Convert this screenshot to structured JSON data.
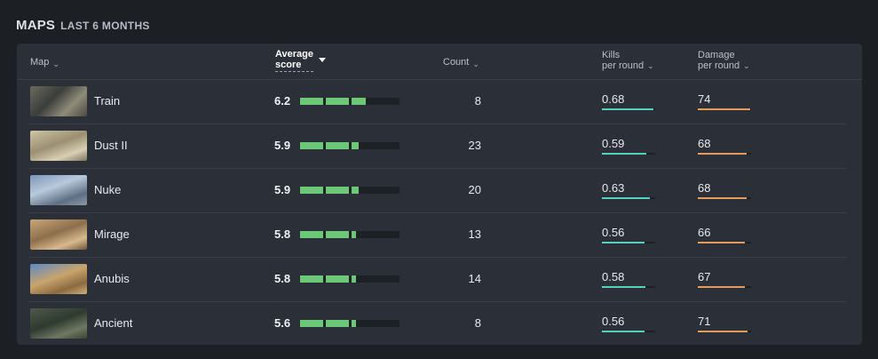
{
  "heading": {
    "title": "MAPS",
    "subtitle": "LAST 6 MONTHS"
  },
  "columns": {
    "map": "Map",
    "avg_score_line1": "Average",
    "avg_score_line2": "score",
    "count": "Count",
    "kills_line1": "Kills",
    "kills_line2": "per round",
    "damage_line1": "Damage",
    "damage_line2": "per round"
  },
  "colors": {
    "score_bar": "#6cc777",
    "kills_bar": "#56d1c0",
    "damage_bar": "#e39c5c"
  },
  "rows": [
    {
      "map": "Train",
      "avg_score": "6.2",
      "score_segments": 2.6,
      "count": "8",
      "kpr": "0.68",
      "kpr_frac": 0.97,
      "dmg": "74",
      "dmg_frac": 0.99
    },
    {
      "map": "Dust II",
      "avg_score": "5.9",
      "score_segments": 2.3,
      "count": "23",
      "kpr": "0.59",
      "kpr_frac": 0.84,
      "dmg": "68",
      "dmg_frac": 0.91
    },
    {
      "map": "Nuke",
      "avg_score": "5.9",
      "score_segments": 2.3,
      "count": "20",
      "kpr": "0.63",
      "kpr_frac": 0.9,
      "dmg": "68",
      "dmg_frac": 0.91
    },
    {
      "map": "Mirage",
      "avg_score": "5.8",
      "score_segments": 2.2,
      "count": "13",
      "kpr": "0.56",
      "kpr_frac": 0.8,
      "dmg": "66",
      "dmg_frac": 0.88
    },
    {
      "map": "Anubis",
      "avg_score": "5.8",
      "score_segments": 2.2,
      "count": "14",
      "kpr": "0.58",
      "kpr_frac": 0.82,
      "dmg": "67",
      "dmg_frac": 0.89
    },
    {
      "map": "Ancient",
      "avg_score": "5.6",
      "score_segments": 2.2,
      "count": "8",
      "kpr": "0.56",
      "kpr_frac": 0.8,
      "dmg": "71",
      "dmg_frac": 0.94
    }
  ]
}
